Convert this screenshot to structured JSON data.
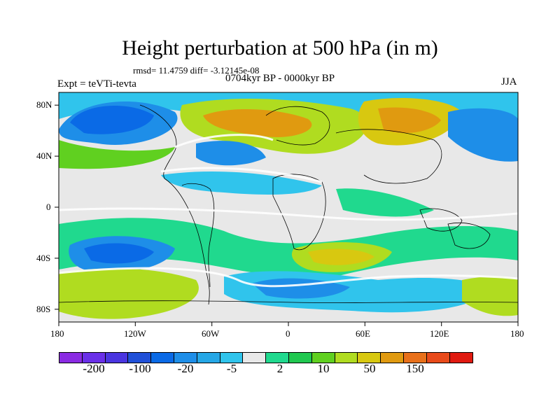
{
  "title": "Height perturbation at 500 hPa (in m)",
  "stats": "rmsd= 11.4759 diff= -3.12145e-08",
  "experiment": "Expt = teVTi-tevta",
  "period": "0704kyr BP - 0000kyr BP",
  "season": "JJA",
  "map": {
    "lat_labels": [
      "80N",
      "40N",
      "0",
      "40S",
      "80S"
    ],
    "lat_values": [
      80,
      40,
      0,
      -40,
      -80
    ],
    "lon_labels": [
      "180",
      "120W",
      "60W",
      "0",
      "60E",
      "120E",
      "180"
    ],
    "lon_values": [
      -180,
      -120,
      -60,
      0,
      60,
      120,
      180
    ],
    "lat_range": [
      -90,
      90
    ],
    "lon_range": [
      -180,
      180
    ]
  },
  "colorbar": {
    "colors": [
      "#8a2be2",
      "#6a30e8",
      "#4a35e0",
      "#2050d8",
      "#0a6ae6",
      "#1e8ee8",
      "#25a7e6",
      "#30c4ec",
      "#e8e8e8",
      "#20d98e",
      "#20c850",
      "#60d020",
      "#b0dc20",
      "#d8c810",
      "#e09a10",
      "#e8701a",
      "#e84a1a",
      "#e01a10"
    ],
    "labels": [
      "-200",
      "-100",
      "-20",
      "-5",
      "2",
      "10",
      "50",
      "150"
    ]
  }
}
